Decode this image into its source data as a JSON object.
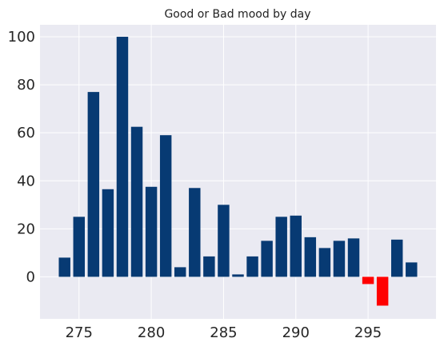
{
  "chart_data": {
    "type": "bar",
    "title": "Good or Bad mood by day",
    "xlabel": "",
    "ylabel": "",
    "x": [
      274,
      275,
      276,
      277,
      278,
      279,
      280,
      281,
      282,
      283,
      284,
      285,
      286,
      287,
      288,
      289,
      290,
      291,
      292,
      293,
      294,
      295,
      296,
      297,
      298
    ],
    "values": [
      8,
      25,
      77,
      36.5,
      100,
      62.5,
      37.5,
      59,
      4,
      37,
      8.5,
      30,
      1,
      8.5,
      15,
      25,
      25.5,
      16.5,
      12,
      15,
      16,
      -3,
      -12,
      15.5,
      6
    ],
    "xlim": [
      272.3,
      299.7
    ],
    "ylim": [
      -17.5,
      105
    ],
    "xticks": [
      275,
      280,
      285,
      290,
      295
    ],
    "yticks": [
      0,
      20,
      40,
      60,
      80,
      100
    ],
    "grid": true,
    "colors": {
      "positive": "#073a73",
      "negative": "#ff0000",
      "plot_background": "#eaeaf2",
      "grid": "#ffffff"
    }
  }
}
